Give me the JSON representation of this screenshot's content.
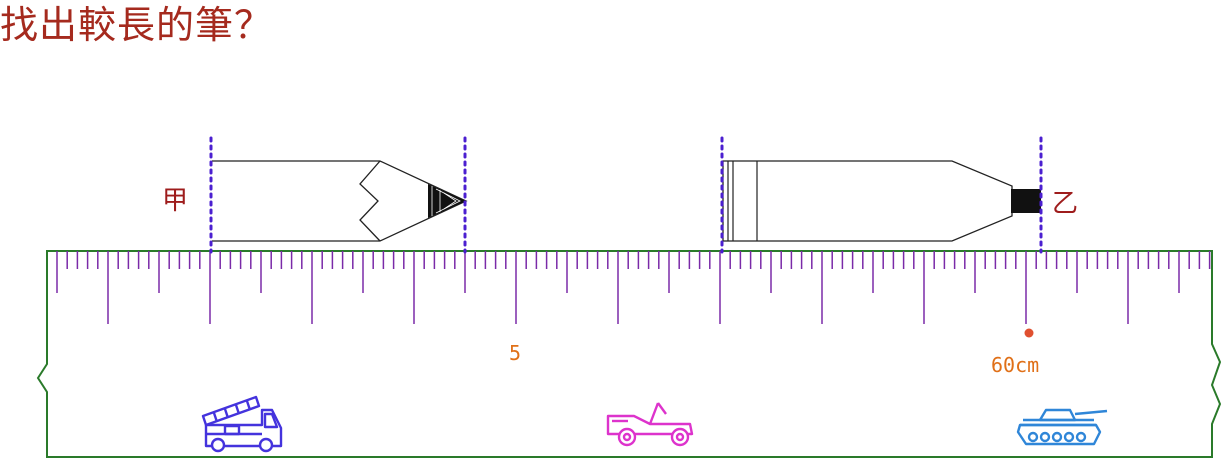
{
  "title": "找出較長的筆？",
  "pencils": [
    {
      "label": "甲"
    },
    {
      "label": "乙"
    }
  ],
  "ruler": {
    "labels": [
      "5",
      "60cm"
    ]
  },
  "vehicles": [
    {
      "icon": "fire-truck-icon",
      "color": "#4433dd"
    },
    {
      "icon": "jeep-icon",
      "color": "#dd33cc"
    },
    {
      "icon": "tank-icon",
      "color": "#2f86d8"
    }
  ],
  "colors": {
    "title": "#a52a1e",
    "ruler_ticks": "#7a2aa8",
    "ruler_border": "#2a7a2a",
    "guide_lines": "#4b1fd0",
    "marker": "#e05030"
  }
}
